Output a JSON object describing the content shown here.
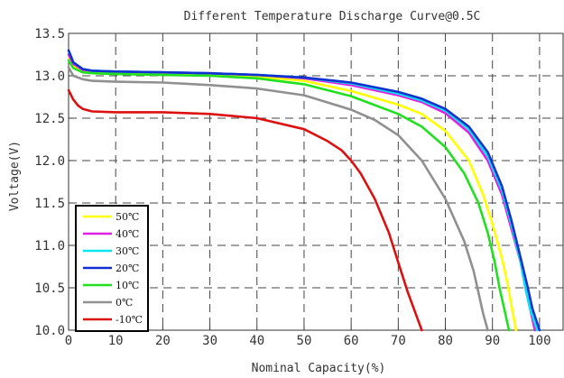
{
  "chart_data": {
    "type": "line",
    "title": "Different Temperature Discharge Curve@0.5C",
    "xlabel": "Nominal Capacity(%)",
    "ylabel": "Voltage(V)",
    "xlim": [
      0,
      105
    ],
    "ylim": [
      10.0,
      13.5
    ],
    "x_ticks": [
      0,
      10,
      20,
      30,
      40,
      50,
      60,
      70,
      80,
      90,
      100
    ],
    "x_tick_labels": [
      "0",
      "10",
      "20",
      "30",
      "40",
      "50",
      "60",
      "70",
      "80",
      "90",
      "100"
    ],
    "y_ticks": [
      10.0,
      10.5,
      11.0,
      11.5,
      12.0,
      12.5,
      13.0,
      13.5
    ],
    "y_tick_labels": [
      "10.0",
      "10.5",
      "11.0",
      "11.5",
      "12.0",
      "12.5",
      "13.0",
      "13.5"
    ],
    "grid": true,
    "legend_position": "bottom-left",
    "series": [
      {
        "name": "50℃",
        "color": "#ffff00",
        "x": [
          0,
          1,
          3,
          5,
          10,
          20,
          30,
          40,
          50,
          60,
          70,
          75,
          80,
          85,
          88,
          90,
          92,
          93,
          94,
          95
        ],
        "y": [
          13.22,
          13.12,
          13.06,
          13.05,
          13.04,
          13.03,
          13.02,
          12.99,
          12.94,
          12.82,
          12.66,
          12.55,
          12.35,
          12.0,
          11.6,
          11.25,
          10.85,
          10.6,
          10.3,
          10.0
        ]
      },
      {
        "name": "40℃",
        "color": "#e020e0",
        "x": [
          0,
          1,
          3,
          5,
          10,
          20,
          30,
          40,
          50,
          60,
          70,
          75,
          80,
          85,
          89,
          92,
          94,
          96,
          97,
          98,
          99
        ],
        "y": [
          13.25,
          13.14,
          13.07,
          13.06,
          13.05,
          13.04,
          13.03,
          13.01,
          12.97,
          12.89,
          12.77,
          12.69,
          12.56,
          12.33,
          12.0,
          11.6,
          11.2,
          10.8,
          10.5,
          10.25,
          10.0
        ]
      },
      {
        "name": "30℃",
        "color": "#00e5ee",
        "x": [
          0,
          1,
          3,
          5,
          10,
          20,
          30,
          40,
          50,
          60,
          70,
          75,
          80,
          85,
          89,
          92,
          94,
          96,
          97,
          98,
          99.5
        ],
        "y": [
          13.3,
          13.16,
          13.08,
          13.06,
          13.05,
          13.04,
          13.03,
          13.01,
          12.98,
          12.91,
          12.79,
          12.71,
          12.59,
          12.37,
          12.05,
          11.65,
          11.25,
          10.8,
          10.5,
          10.25,
          10.0
        ]
      },
      {
        "name": "20℃",
        "color": "#1030d0",
        "x": [
          0,
          1,
          3,
          5,
          10,
          20,
          30,
          40,
          50,
          60,
          70,
          75,
          80,
          85,
          89,
          92,
          94,
          96,
          97.5,
          98.5,
          100
        ],
        "y": [
          13.3,
          13.16,
          13.08,
          13.06,
          13.05,
          13.04,
          13.03,
          13.01,
          12.98,
          12.92,
          12.81,
          12.73,
          12.61,
          12.4,
          12.1,
          11.7,
          11.3,
          10.85,
          10.5,
          10.25,
          10.0
        ]
      },
      {
        "name": "10℃",
        "color": "#20e020",
        "x": [
          0,
          1,
          3,
          5,
          10,
          20,
          30,
          40,
          50,
          60,
          70,
          75,
          80,
          84,
          87,
          89,
          90.5,
          91.5,
          92.5,
          93.5
        ],
        "y": [
          13.18,
          13.09,
          13.04,
          13.03,
          13.02,
          13.01,
          13.0,
          12.97,
          12.9,
          12.76,
          12.55,
          12.4,
          12.16,
          11.85,
          11.5,
          11.15,
          10.8,
          10.5,
          10.25,
          10.0
        ]
      },
      {
        "name": "0℃",
        "color": "#909090",
        "x": [
          0,
          1,
          3,
          5,
          10,
          20,
          30,
          40,
          50,
          60,
          65,
          70,
          75,
          80,
          84,
          86,
          87,
          88,
          89
        ],
        "y": [
          13.1,
          13.0,
          12.96,
          12.94,
          12.93,
          12.92,
          12.89,
          12.85,
          12.77,
          12.6,
          12.48,
          12.3,
          12.0,
          11.55,
          11.05,
          10.7,
          10.45,
          10.2,
          10.0
        ]
      },
      {
        "name": "-10℃",
        "color": "#dd1010",
        "x": [
          0,
          1,
          2,
          3,
          5,
          10,
          20,
          30,
          40,
          50,
          55,
          58,
          60,
          62,
          65,
          68,
          70,
          72,
          74,
          75
        ],
        "y": [
          12.83,
          12.72,
          12.65,
          12.61,
          12.58,
          12.57,
          12.57,
          12.55,
          12.5,
          12.37,
          12.23,
          12.12,
          12.0,
          11.85,
          11.55,
          11.15,
          10.8,
          10.45,
          10.15,
          10.0
        ]
      }
    ]
  }
}
